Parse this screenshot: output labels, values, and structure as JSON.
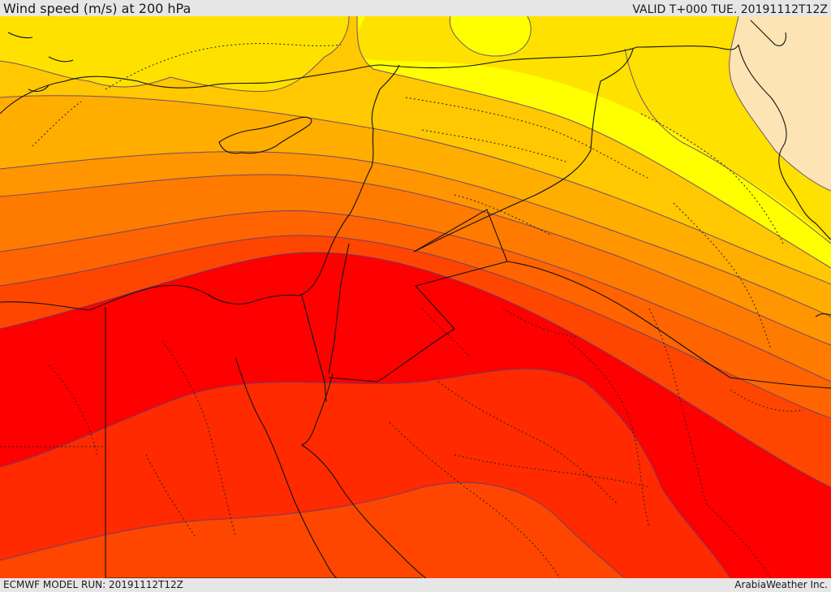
{
  "header": {
    "title": "Wind speed (m/s) at 200 hPa",
    "valid_time": "VALID T+000 TUE. 20191112T12Z"
  },
  "footer": {
    "model_run": "ECMWF MODEL RUN: 20191112T12Z",
    "credit": "ArabiaWeather Inc."
  },
  "map": {
    "variable": "wind speed",
    "level": "200 hPa",
    "units": "m/s",
    "band_colors": [
      "#fde4b4",
      "#ffff00",
      "#ffe100",
      "#ffc800",
      "#ffae00",
      "#ff9500",
      "#ff7b00",
      "#ff6400",
      "#ff4600",
      "#ff2a00",
      "#ff0000"
    ],
    "contour_color": "#5a3c78",
    "border_color": "#111111",
    "internal_border_style": "dotted"
  }
}
